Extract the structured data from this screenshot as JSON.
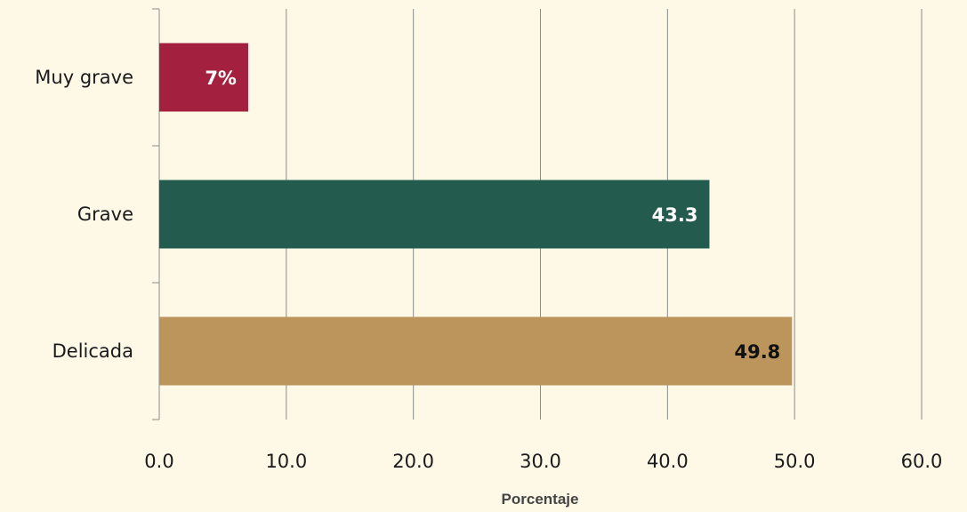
{
  "chart_data": {
    "type": "bar",
    "orientation": "horizontal",
    "categories": [
      "Muy grave",
      "Grave",
      "Delicada"
    ],
    "values": [
      7.0,
      43.3,
      49.8
    ],
    "data_labels": [
      "7%",
      "43.3",
      "49.8"
    ],
    "colors": [
      "#a3213f",
      "#235b4e",
      "#bc955c"
    ],
    "label_colors": [
      "#ffffff",
      "#ffffff",
      "#111111"
    ],
    "xlabel": "Porcentaje",
    "xlim": [
      0,
      60
    ],
    "xticks": [
      0,
      10,
      20,
      30,
      40,
      50,
      60
    ],
    "xtick_labels": [
      "0.0",
      "10.0",
      "20.0",
      "30.0",
      "40.0",
      "50.0",
      "60.0"
    ],
    "grid": "vertical",
    "background": "#fef8e7"
  }
}
